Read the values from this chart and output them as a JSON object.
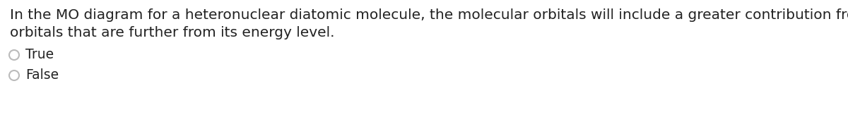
{
  "background_color": "#ffffff",
  "question_text_line1": "In the MO diagram for a heteronuclear diatomic molecule, the molecular orbitals will include a greater contribution from the atomic",
  "question_text_line2": "orbitals that are further from its energy level.",
  "option1": "True",
  "option2": "False",
  "text_color": "#222222",
  "font_size_question": 14.5,
  "font_size_options": 13.5,
  "circle_color": "#bbbbbb",
  "circle_linewidth": 1.5,
  "fig_width": 12.0,
  "fig_height": 1.66,
  "dpi": 100
}
